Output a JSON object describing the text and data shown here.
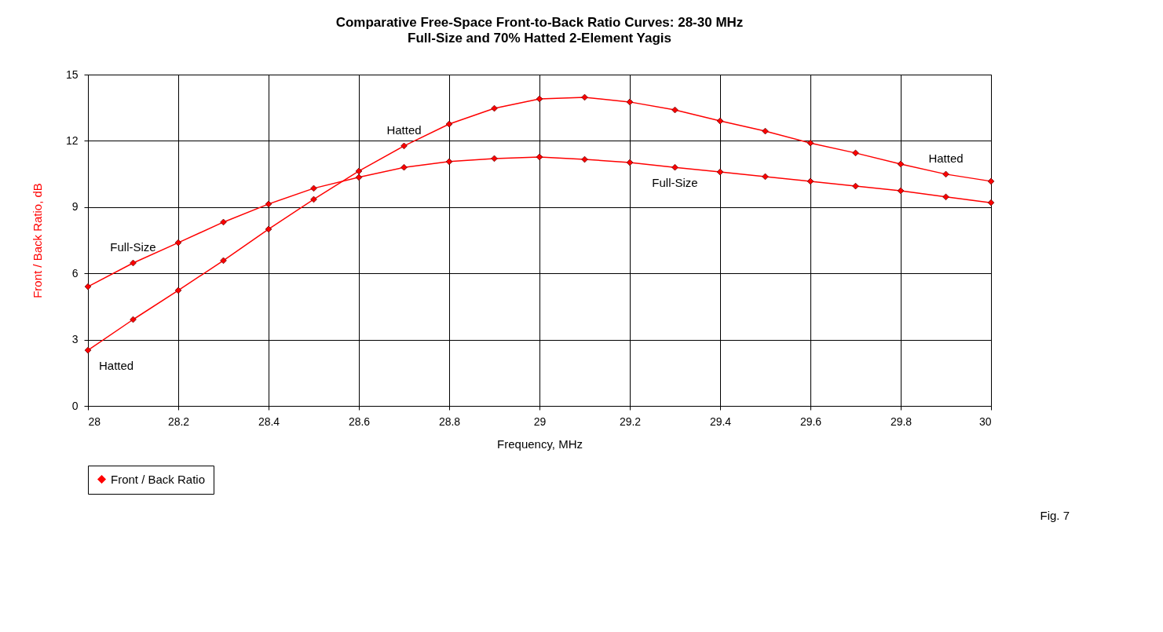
{
  "chart_data": {
    "type": "line",
    "title": "Comparative Free-Space Front-to-Back Ratio Curves: 28-30 MHz",
    "subtitle": "Full-Size and 70% Hatted 2-Element Yagis",
    "xlabel": "Frequency, MHz",
    "ylabel": "Front / Back Ratio, dB",
    "x": [
      28,
      28.1,
      28.2,
      28.3,
      28.4,
      28.5,
      28.6,
      28.7,
      28.8,
      28.9,
      29,
      29.1,
      29.2,
      29.3,
      29.4,
      29.5,
      29.6,
      29.7,
      29.8,
      29.9,
      30
    ],
    "series": [
      {
        "name": "Front / Back Ratio",
        "color": "#ff0000",
        "values": [
          5.4,
          6.47,
          7.39,
          8.32,
          9.14,
          9.85,
          10.35,
          10.8,
          11.06,
          11.2,
          11.27,
          11.16,
          11.02,
          10.8,
          10.59,
          10.38,
          10.17,
          9.95,
          9.74,
          9.46,
          9.2
        ]
      },
      {
        "color": "#ff0000",
        "values": [
          2.52,
          3.91,
          5.23,
          6.58,
          8.0,
          9.35,
          10.63,
          11.77,
          12.76,
          13.47,
          13.9,
          13.97,
          13.76,
          13.4,
          12.9,
          12.44,
          11.9,
          11.45,
          10.95,
          10.49,
          10.17
        ]
      }
    ],
    "xlim": [
      28,
      30
    ],
    "xticks": [
      28,
      28.2,
      28.4,
      28.6,
      28.8,
      29,
      29.2,
      29.4,
      29.6,
      29.8,
      30
    ],
    "ylim": [
      0,
      15
    ],
    "yticks": [
      0,
      3,
      6,
      9,
      12,
      15
    ],
    "grid": true,
    "legend": "bottom",
    "marker": "diamond",
    "line_style": "solid",
    "annotations": [
      {
        "text": "Hatted",
        "x": 28.7,
        "y": 11.77
      },
      {
        "text": "Full-Size",
        "x": 28.1,
        "y": 6.47
      },
      {
        "text": "Full-Size",
        "x": 29.3,
        "y": 10.8
      },
      {
        "text": "Hatted",
        "x": 29.9,
        "y": 10.49
      },
      {
        "text": "Hatted",
        "x": 28,
        "y": 2.52
      },
      "Fig. 7"
    ]
  }
}
